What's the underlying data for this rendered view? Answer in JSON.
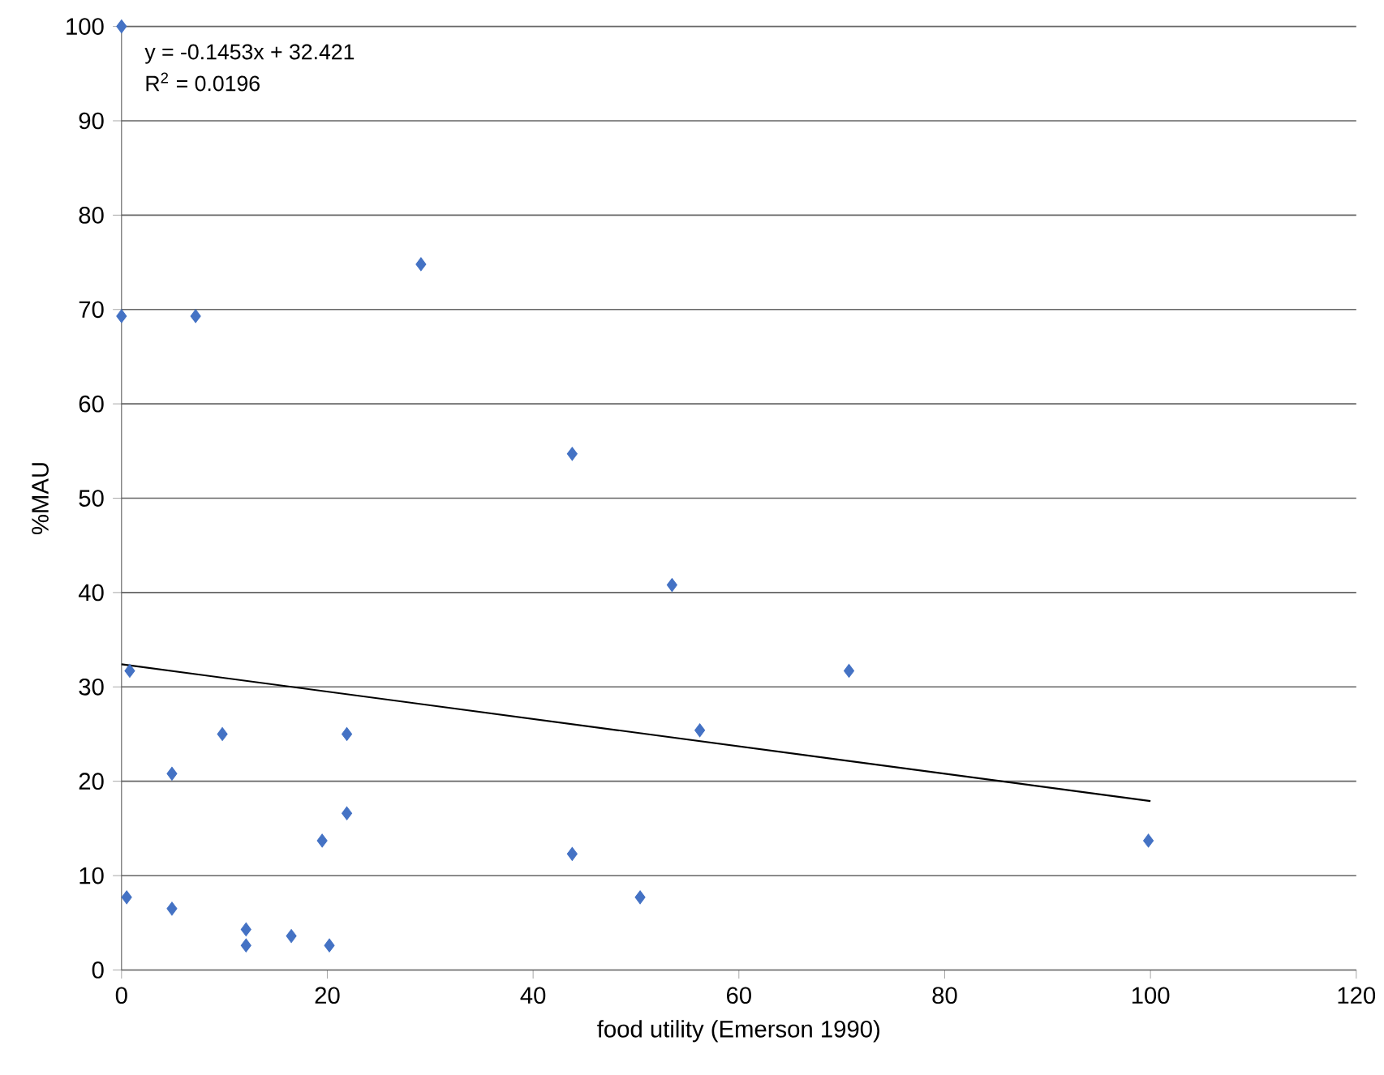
{
  "chart_data": {
    "type": "scatter",
    "xlabel": "food utility (Emerson 1990)",
    "ylabel": "%MAU",
    "annotations": [
      "y = -0.1453x + 32.421",
      "R$^{2}$ =  0.0196"
    ],
    "xlim": [
      0,
      120
    ],
    "xticks": [
      0,
      20,
      40,
      60,
      80,
      100,
      120
    ],
    "ylim": [
      0,
      100
    ],
    "yticks": [
      0,
      10,
      20,
      30,
      40,
      50,
      60,
      70,
      80,
      90,
      100
    ],
    "grid": "y",
    "series": [
      {
        "color": "#4472c4",
        "marker": "diamond",
        "x": [
          0,
          0,
          7.2,
          29.1,
          43.8,
          53.5,
          70.7,
          0.8,
          9.8,
          21.9,
          56.2,
          4.9,
          21.9,
          19.5,
          43.8,
          99.8,
          0.5,
          50.4,
          4.9,
          12.1,
          12.1,
          16.5,
          20.2
        ],
        "values": [
          100,
          69.3,
          69.3,
          74.8,
          54.7,
          40.8,
          31.7,
          31.7,
          25.0,
          25.0,
          25.4,
          20.8,
          16.6,
          13.7,
          12.3,
          13.7,
          7.7,
          7.7,
          6.5,
          4.3,
          2.6,
          3.6,
          2.6
        ]
      },
      {
        "type": "line",
        "color": "#000000",
        "marker": "none",
        "x": [
          0,
          100
        ],
        "values": [
          32.4,
          17.9
        ]
      }
    ]
  }
}
